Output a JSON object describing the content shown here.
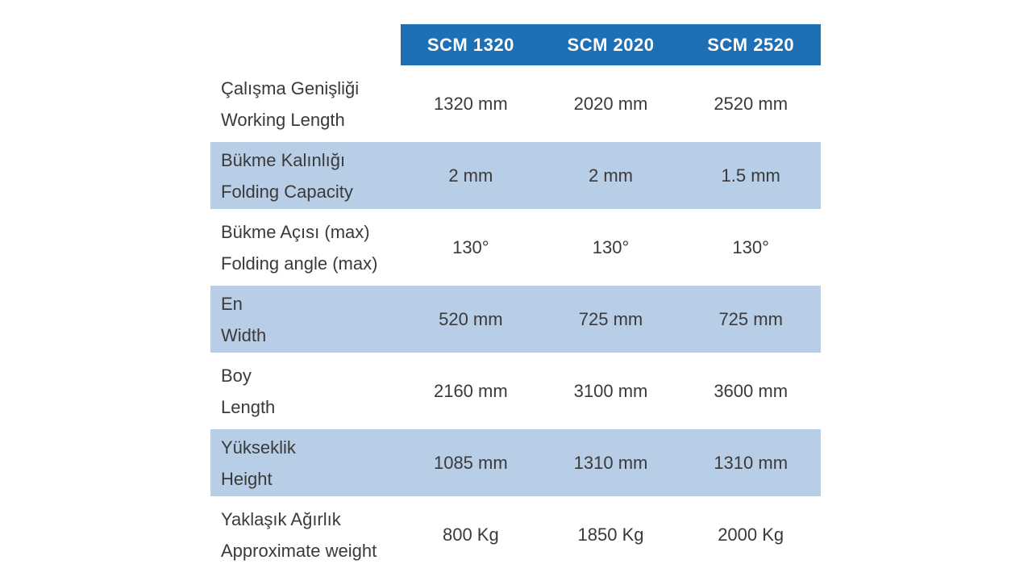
{
  "header": {
    "models": [
      "SCM 1320",
      "SCM 2020",
      "SCM 2520"
    ]
  },
  "rows": [
    {
      "label_tr": "Çalışma Genişliği",
      "label_en": "Working Length",
      "values": [
        "1320 mm",
        "2020 mm",
        "2520 mm"
      ]
    },
    {
      "label_tr": "Bükme Kalınlığı",
      "label_en": "Folding Capacity",
      "values": [
        "2  mm",
        "2 mm",
        "1.5 mm"
      ]
    },
    {
      "label_tr": "Bükme Açısı (max)",
      "label_en": "Folding angle (max)",
      "values": [
        "130°",
        "130°",
        "130°"
      ]
    },
    {
      "label_tr": "En",
      "label_en": "Width",
      "values": [
        "520  mm",
        "725 mm",
        "725 mm"
      ]
    },
    {
      "label_tr": "Boy",
      "label_en": "Length",
      "values": [
        "2160 mm",
        "3100 mm",
        "3600 mm"
      ]
    },
    {
      "label_tr": "Yükseklik",
      "label_en": "Height",
      "values": [
        "1085 mm",
        "1310 mm",
        "1310 mm"
      ]
    },
    {
      "label_tr": "Yaklaşık Ağırlık",
      "label_en": "Approximate weight",
      "values": [
        "800 Kg",
        "1850 Kg",
        "2000 Kg"
      ]
    }
  ],
  "colors": {
    "header_bg": "#1f6fb5",
    "shaded_row": "#b8cde6",
    "text": "#3a3a3a"
  }
}
